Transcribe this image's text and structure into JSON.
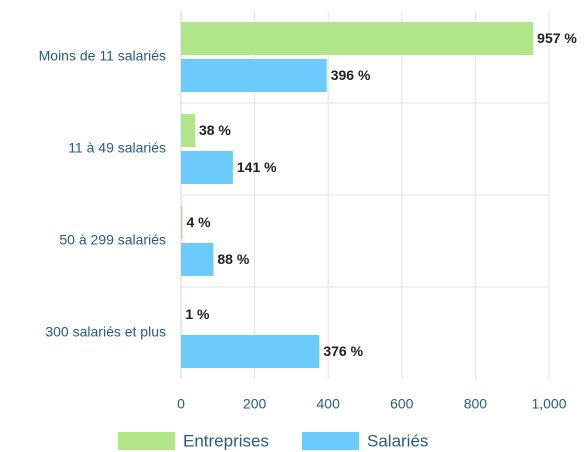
{
  "chart_data": {
    "type": "bar",
    "orientation": "horizontal",
    "categories": [
      "Moins de 11 salariés",
      "11 à 49 salariés",
      "50 à 299 salariés",
      "300 salariés et plus"
    ],
    "series": [
      {
        "name": "Entreprises",
        "color": "#b0e58a",
        "values": [
          957,
          38,
          4,
          1
        ],
        "value_labels": [
          "957 %",
          "38 %",
          "4 %",
          "1 %"
        ]
      },
      {
        "name": "Salariés",
        "color": "#6ccbfb",
        "values": [
          396,
          141,
          88,
          376
        ],
        "value_labels": [
          "396 %",
          "141 %",
          "88 %",
          "376 %"
        ]
      }
    ],
    "xlim": [
      0,
      1000
    ],
    "xticks": [
      0,
      200,
      400,
      600,
      800,
      {
        "value": 1000,
        "label": "1,000"
      }
    ],
    "grid": true,
    "legend": "bottom"
  }
}
